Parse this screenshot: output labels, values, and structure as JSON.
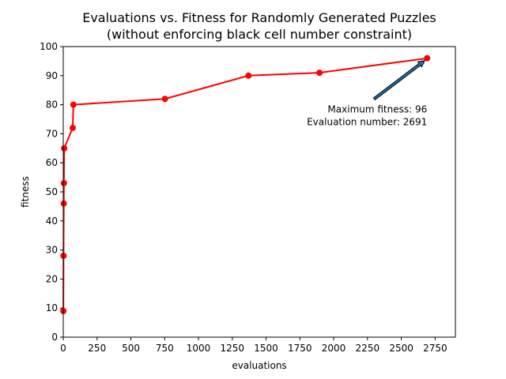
{
  "chart_data": {
    "type": "line",
    "title": "Evaluations vs. Fitness for Randomly Generated Puzzles",
    "subtitle": "(without enforcing black cell number constraint)",
    "xlabel": "evaluations",
    "ylabel": "fitness",
    "xlim": [
      0,
      2900
    ],
    "ylim": [
      0,
      100
    ],
    "xticks": [
      0,
      250,
      500,
      750,
      1000,
      1250,
      1500,
      1750,
      2000,
      2250,
      2500,
      2750
    ],
    "yticks": [
      0,
      10,
      20,
      30,
      40,
      50,
      60,
      70,
      80,
      90,
      100
    ],
    "grid": false,
    "series": [
      {
        "color": "#ff0000",
        "x": [
          1,
          2,
          4,
          5,
          7,
          70,
          75,
          752,
          1370,
          1895,
          2691
        ],
        "y": [
          9,
          28,
          46,
          53,
          65,
          72,
          80,
          82,
          90,
          91,
          96
        ]
      }
    ],
    "annotation": {
      "lines": [
        "Maximum fitness: 96",
        "Evaluation number: 2691"
      ],
      "point": [
        2691,
        96
      ],
      "text_anchor_data": [
        2691,
        74
      ],
      "arrow_tail_data": [
        2300,
        82
      ]
    }
  }
}
